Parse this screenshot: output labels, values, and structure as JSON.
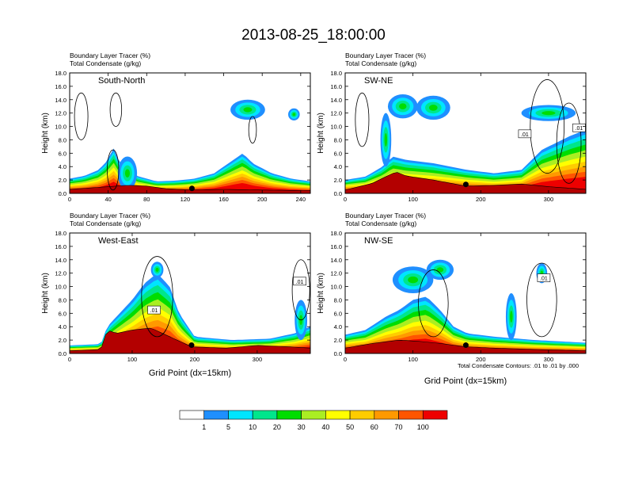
{
  "title": "2013-08-25_18:00:00",
  "footnote": "Total Condensate Contours: .01 to .01 by .000",
  "chart_data": [
    {
      "type": "heatmap",
      "panel": "South-North",
      "label": "South-North",
      "header1": "Boundary Layer Tracer   (%)",
      "header2": "Total Condensate   (g/kg)",
      "ylabel": "Height (km)",
      "xlabel": "",
      "xlim": [
        0,
        250
      ],
      "ylim": [
        0,
        18
      ],
      "xticks": [
        0,
        40,
        80,
        120,
        160,
        200,
        240
      ],
      "yticks": [
        "0.0",
        "2.0",
        "4.0",
        "6.0",
        "8.0",
        "10.0",
        "12.0",
        "14.0",
        "16.0",
        "18.0"
      ],
      "marker_x": 127,
      "contour_labels": [],
      "terrain": [
        [
          0,
          0.6
        ],
        [
          20,
          0.8
        ],
        [
          40,
          1.0
        ],
        [
          60,
          1.2
        ],
        [
          80,
          1.1
        ],
        [
          100,
          0.7
        ],
        [
          127,
          0.5
        ],
        [
          160,
          0.6
        ],
        [
          200,
          0.5
        ],
        [
          250,
          0.4
        ]
      ],
      "tracer_top": [
        [
          0,
          2.2
        ],
        [
          15,
          2.6
        ],
        [
          30,
          3.5
        ],
        [
          40,
          5.0
        ],
        [
          45,
          7.0
        ],
        [
          52,
          4.5
        ],
        [
          70,
          2.6
        ],
        [
          90,
          1.8
        ],
        [
          110,
          1.9
        ],
        [
          130,
          2.2
        ],
        [
          150,
          3.0
        ],
        [
          165,
          4.5
        ],
        [
          180,
          6.0
        ],
        [
          190,
          4.5
        ],
        [
          210,
          3.0
        ],
        [
          230,
          2.2
        ],
        [
          250,
          1.8
        ]
      ],
      "cloud_blobs": [
        [
          185,
          12.5,
          18,
          1.5
        ],
        [
          233,
          11.8,
          6,
          0.9
        ],
        [
          60,
          3.0,
          10,
          2.5
        ]
      ],
      "contours": [
        [
          12,
          11.5,
          7,
          3.5
        ],
        [
          48,
          12.5,
          6,
          2.5
        ],
        [
          190,
          9.5,
          4,
          2.0
        ],
        [
          45,
          3.5,
          6,
          3.0
        ]
      ]
    },
    {
      "type": "heatmap",
      "panel": "SW-NE",
      "label": "SW-NE",
      "header1": "Boundary Layer Tracer   (%)",
      "header2": "Total Condensate   (g/kg)",
      "ylabel": "Height (km)",
      "xlabel": "",
      "xlim": [
        0,
        355
      ],
      "ylim": [
        0,
        18
      ],
      "xticks": [
        0,
        100,
        200,
        300
      ],
      "yticks": [
        "0.0",
        "2.0",
        "4.0",
        "6.0",
        "8.0",
        "10.0",
        "12.0",
        "14.0",
        "16.0",
        "18.0"
      ],
      "marker_x": 178,
      "contour_labels": [
        [
          265,
          8.9,
          ".01"
        ],
        [
          345,
          9.8,
          ".01"
        ]
      ],
      "terrain": [
        [
          0,
          0.5
        ],
        [
          40,
          1.5
        ],
        [
          60,
          2.5
        ],
        [
          75,
          3.2
        ],
        [
          90,
          2.6
        ],
        [
          130,
          2.0
        ],
        [
          178,
          1.1
        ],
        [
          220,
          1.2
        ],
        [
          260,
          1.4
        ],
        [
          300,
          1.0
        ],
        [
          355,
          0.6
        ]
      ],
      "tracer_top": [
        [
          0,
          2.0
        ],
        [
          30,
          2.5
        ],
        [
          55,
          4.0
        ],
        [
          70,
          5.5
        ],
        [
          90,
          5.0
        ],
        [
          130,
          4.5
        ],
        [
          180,
          3.5
        ],
        [
          220,
          3.0
        ],
        [
          260,
          3.5
        ],
        [
          290,
          6.5
        ],
        [
          310,
          7.5
        ],
        [
          330,
          8.5
        ],
        [
          355,
          9.5
        ]
      ],
      "cloud_blobs": [
        [
          85,
          13.0,
          22,
          1.8
        ],
        [
          130,
          12.8,
          25,
          1.8
        ],
        [
          300,
          12.0,
          40,
          1.2
        ],
        [
          60,
          8.0,
          8,
          4.0
        ]
      ],
      "contours": [
        [
          25,
          11.0,
          10,
          4.0
        ],
        [
          298,
          10.0,
          25,
          7.0
        ],
        [
          330,
          7.5,
          18,
          6.0
        ]
      ]
    },
    {
      "type": "heatmap",
      "panel": "West-East",
      "label": "West-East",
      "header1": "Boundary Layer Tracer   (%)",
      "header2": "Total Condensate   (g/kg)",
      "ylabel": "Height (km)",
      "xlabel": "Grid Point (dx=15km)",
      "xlim": [
        0,
        385
      ],
      "ylim": [
        0,
        18
      ],
      "xticks": [
        0,
        100,
        200,
        300
      ],
      "yticks": [
        "0.0",
        "2.0",
        "4.0",
        "6.0",
        "8.0",
        "10.0",
        "12.0",
        "14.0",
        "16.0",
        "18.0"
      ],
      "marker_x": 195,
      "contour_labels": [
        [
          135,
          6.5,
          ".01"
        ],
        [
          368,
          10.8,
          ".01"
        ]
      ],
      "terrain": [
        [
          0,
          0.4
        ],
        [
          50,
          0.6
        ],
        [
          60,
          3.5
        ],
        [
          75,
          3.0
        ],
        [
          100,
          3.5
        ],
        [
          130,
          3.8
        ],
        [
          160,
          2.5
        ],
        [
          195,
          1.0
        ],
        [
          250,
          0.8
        ],
        [
          300,
          1.2
        ],
        [
          350,
          1.0
        ],
        [
          385,
          0.8
        ]
      ],
      "tracer_top": [
        [
          0,
          1.2
        ],
        [
          50,
          1.4
        ],
        [
          60,
          4.0
        ],
        [
          80,
          6.0
        ],
        [
          100,
          8.0
        ],
        [
          120,
          10.5
        ],
        [
          140,
          12.0
        ],
        [
          160,
          10.0
        ],
        [
          175,
          6.0
        ],
        [
          200,
          2.5
        ],
        [
          260,
          2.0
        ],
        [
          320,
          2.2
        ],
        [
          360,
          3.0
        ],
        [
          385,
          4.0
        ]
      ],
      "cloud_blobs": [
        [
          140,
          12.5,
          10,
          1.2
        ],
        [
          370,
          5.0,
          10,
          3.0
        ]
      ],
      "contours": [
        [
          140,
          8.5,
          25,
          6.0
        ],
        [
          370,
          9.5,
          14,
          4.5
        ]
      ]
    },
    {
      "type": "heatmap",
      "panel": "NW-SE",
      "label": "NW-SE",
      "header1": "Boundary Layer Tracer   (%)",
      "header2": "Total Condensate   (g/kg)",
      "ylabel": "Height (km)",
      "xlabel": "Grid Point (dx=15km)",
      "xlim": [
        0,
        355
      ],
      "ylim": [
        0,
        18
      ],
      "xticks": [
        0,
        100,
        200,
        300
      ],
      "yticks": [
        "0.0",
        "2.0",
        "4.0",
        "6.0",
        "8.0",
        "10.0",
        "12.0",
        "14.0",
        "16.0",
        "18.0"
      ],
      "marker_x": 178,
      "contour_labels": [
        [
          293,
          11.3,
          ".01"
        ]
      ],
      "terrain": [
        [
          0,
          0.8
        ],
        [
          40,
          1.5
        ],
        [
          80,
          2.0
        ],
        [
          110,
          1.8
        ],
        [
          140,
          1.5
        ],
        [
          178,
          1.0
        ],
        [
          220,
          0.8
        ],
        [
          280,
          0.6
        ],
        [
          355,
          0.4
        ]
      ],
      "tracer_top": [
        [
          0,
          2.8
        ],
        [
          30,
          3.5
        ],
        [
          60,
          5.5
        ],
        [
          80,
          6.5
        ],
        [
          100,
          8.0
        ],
        [
          120,
          8.5
        ],
        [
          140,
          6.5
        ],
        [
          160,
          4.0
        ],
        [
          180,
          3.0
        ],
        [
          220,
          2.5
        ],
        [
          280,
          2.0
        ],
        [
          355,
          1.6
        ]
      ],
      "cloud_blobs": [
        [
          100,
          11.0,
          30,
          2.0
        ],
        [
          140,
          12.5,
          20,
          1.5
        ],
        [
          290,
          12.0,
          8,
          1.5
        ],
        [
          245,
          5.5,
          8,
          3.5
        ]
      ],
      "contours": [
        [
          130,
          7.5,
          22,
          5.0
        ],
        [
          290,
          8.0,
          22,
          5.5
        ]
      ]
    }
  ],
  "colorbar": {
    "labels": [
      "1",
      "5",
      "10",
      "20",
      "30",
      "40",
      "50",
      "60",
      "70",
      "100"
    ],
    "colors": [
      "#ffffff",
      "#1f8fff",
      "#00e5ff",
      "#00e68c",
      "#00dd00",
      "#aaee22",
      "#ffff00",
      "#ffcc00",
      "#ff9900",
      "#ff5500",
      "#ee0000"
    ]
  }
}
